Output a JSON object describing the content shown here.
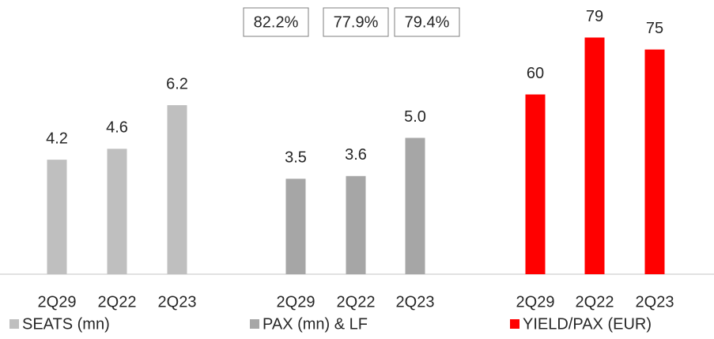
{
  "chart_data": [
    {
      "type": "bar",
      "name": "SEATS (mn)",
      "color": "#bfbfbf",
      "categories": [
        "2Q29",
        "2Q22",
        "2Q23"
      ],
      "values": [
        4.2,
        4.6,
        6.2
      ],
      "ylim": [
        0,
        10
      ]
    },
    {
      "type": "bar",
      "name": "PAX (mn) & LF",
      "color": "#a6a6a6",
      "categories": [
        "2Q29",
        "2Q22",
        "2Q23"
      ],
      "values": [
        3.5,
        3.6,
        5.0
      ],
      "value_labels": [
        "3.5",
        "3.6",
        "5.0"
      ],
      "ylim": [
        0,
        10
      ],
      "annotations": [
        {
          "value": 82.2,
          "label": "82.2%"
        },
        {
          "value": 77.9,
          "label": "77.9%"
        },
        {
          "value": 79.4,
          "label": "79.4%"
        }
      ]
    },
    {
      "type": "bar",
      "name": "YIELD/PAX (EUR)",
      "color": "#ff0000",
      "categories": [
        "2Q29",
        "2Q22",
        "2Q23"
      ],
      "values": [
        60,
        79,
        75
      ],
      "ylim": [
        0,
        91
      ]
    }
  ]
}
